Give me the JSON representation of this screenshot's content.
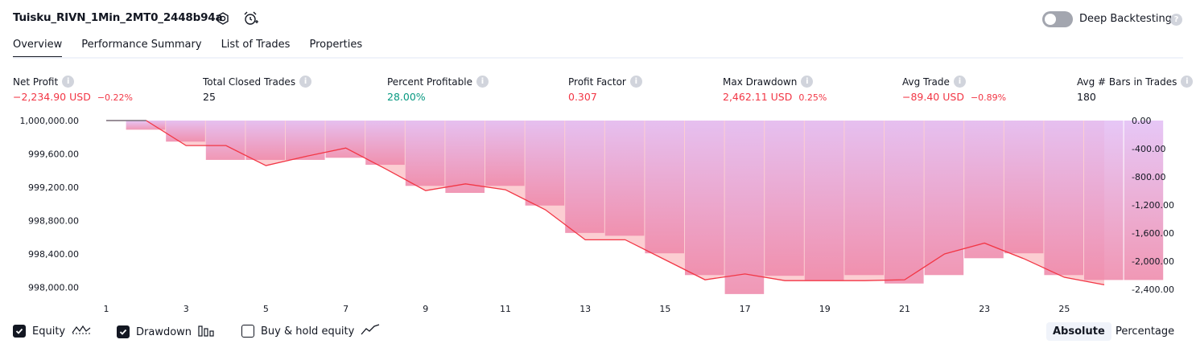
{
  "header": {
    "strategy_name": "Tuisku_RIVN_1Min_2MT0_2448b94a",
    "settings_icon": "gear-icon",
    "alert_icon": "alarm-clock-plus-icon",
    "deep_backtesting_label": "Deep Backtesting",
    "deep_backtesting_on": false
  },
  "tabs": [
    {
      "label": "Overview",
      "active": true
    },
    {
      "label": "Performance Summary",
      "active": false
    },
    {
      "label": "List of Trades",
      "active": false
    },
    {
      "label": "Properties",
      "active": false
    }
  ],
  "metrics": {
    "net_profit": {
      "label": "Net Profit",
      "value": "−2,234.90 USD",
      "pct": "−0.22%"
    },
    "total_closed_trades": {
      "label": "Total Closed Trades",
      "value": "25"
    },
    "percent_profitable": {
      "label": "Percent Profitable",
      "value": "28.00%"
    },
    "profit_factor": {
      "label": "Profit Factor",
      "value": "0.307"
    },
    "max_drawdown": {
      "label": "Max Drawdown",
      "value": "2,462.11 USD",
      "pct": "0.25%"
    },
    "avg_trade": {
      "label": "Avg Trade",
      "value": "−89.40 USD",
      "pct": "−0.89%"
    },
    "avg_bars": {
      "label": "Avg # Bars in Trades",
      "value": "180"
    }
  },
  "chart_data": {
    "type": "line",
    "x": [
      1,
      2,
      3,
      4,
      5,
      6,
      7,
      8,
      9,
      10,
      11,
      12,
      13,
      14,
      15,
      16,
      17,
      18,
      19,
      20,
      21,
      22,
      23,
      24,
      25,
      26,
      27
    ],
    "x_tick_labels": [
      "1",
      "3",
      "5",
      "7",
      "9",
      "11",
      "13",
      "15",
      "17",
      "19",
      "21",
      "23",
      "25"
    ],
    "y_left_tick_labels": [
      "1,000,000.00",
      "999,600.00",
      "999,200.00",
      "998,800.00",
      "998,400.00",
      "998,000.00"
    ],
    "y_left_ticks": [
      1000000,
      999600,
      999200,
      998800,
      998400,
      998000
    ],
    "y_left_range": [
      997860,
      1000000
    ],
    "y_right_tick_labels": [
      "0.00",
      "-400.00",
      "-800.00",
      "-1,200.00",
      "-1,600.00",
      "-2,000.00",
      "-2,400.00"
    ],
    "y_right_ticks": [
      0,
      -400,
      -800,
      -1200,
      -1600,
      -2000,
      -2400
    ],
    "y_right_range": [
      -2540,
      0
    ],
    "series": [
      {
        "name": "Equity",
        "axis": "left",
        "color": "#f23645",
        "values": [
          1000000,
          1000000,
          999700,
          999700,
          999460,
          999570,
          999670,
          999420,
          999160,
          999240,
          999170,
          998930,
          998570,
          998570,
          998330,
          998090,
          998160,
          998080,
          998080,
          998080,
          998090,
          998400,
          998530,
          998340,
          998120,
          998030,
          null
        ]
      },
      {
        "name": "Drawdown",
        "axis": "right",
        "color": "#c77dff",
        "values": [
          0,
          -130,
          -300,
          -560,
          -560,
          -560,
          -530,
          -630,
          -930,
          -1030,
          -930,
          -1210,
          -1600,
          -1640,
          -1890,
          -2200,
          -2470,
          -2210,
          -2270,
          -2200,
          -2320,
          -2200,
          -1960,
          -1890,
          -2200,
          -2270,
          -2270
        ]
      }
    ],
    "legend": [
      {
        "label": "Equity",
        "checked": true,
        "icon": "equity-line-icon"
      },
      {
        "label": "Drawdown",
        "checked": true,
        "icon": "drawdown-bars-icon"
      },
      {
        "label": "Buy & hold equity",
        "checked": false,
        "icon": "buy-hold-line-icon"
      }
    ],
    "grid": false
  },
  "view_modes": {
    "absolute": "Absolute",
    "percentage": "Percentage",
    "selected": "Absolute"
  }
}
